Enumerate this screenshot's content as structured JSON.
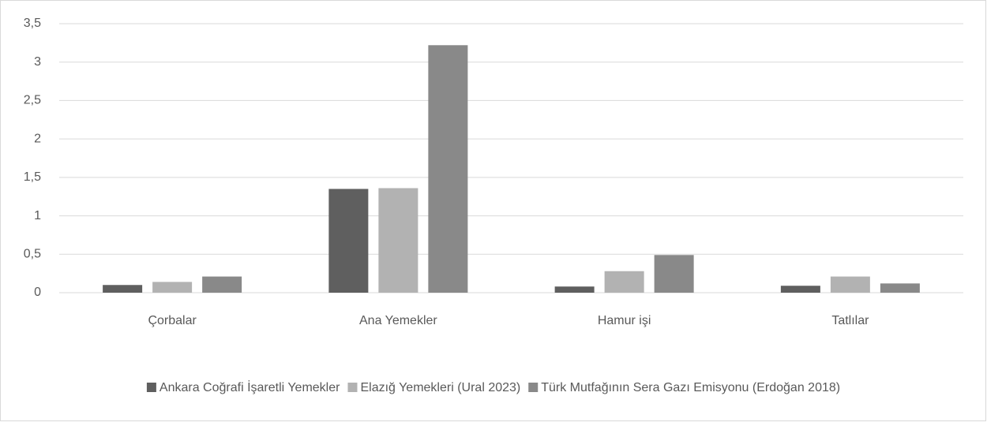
{
  "chart_data": {
    "type": "bar",
    "categories": [
      "Çorbalar",
      "Ana Yemekler",
      "Hamur işi",
      "Tatlılar"
    ],
    "series": [
      {
        "name": "Ankara Coğrafi İşaretli Yemekler",
        "color": "#5f5f5f",
        "values": [
          0.1,
          1.35,
          0.08,
          0.09
        ]
      },
      {
        "name": "Elazığ Yemekleri (Ural 2023)",
        "color": "#b2b2b2",
        "values": [
          0.14,
          1.36,
          0.28,
          0.21
        ]
      },
      {
        "name": "Türk Mutfağının Sera Gazı Emisyonu (Erdoğan 2018)",
        "color": "#898989",
        "values": [
          0.21,
          3.22,
          0.49,
          0.12
        ]
      }
    ],
    "ylim": [
      0,
      3.5
    ],
    "yticks": [
      0,
      {
        "value": 0.5,
        "label": "0,5"
      },
      1,
      {
        "value": 1.5,
        "label": "1,5"
      },
      2,
      {
        "value": 2.5,
        "label": "2,5"
      },
      3,
      {
        "value": 3.5,
        "label": "3,5"
      }
    ],
    "grid": true,
    "legend": "bottom"
  }
}
